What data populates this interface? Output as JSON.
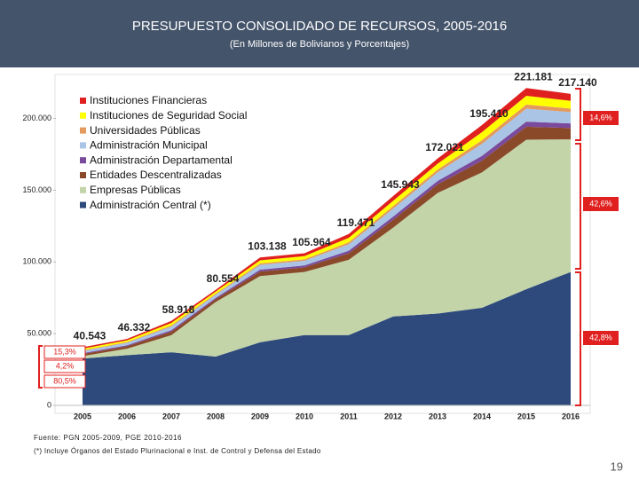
{
  "slide": {
    "page_number": "19"
  },
  "chart_data": {
    "type": "stacked_area",
    "title": "PRESUPUESTO CONSOLIDADO DE RECURSOS, 2005-2016",
    "subtitle": "(En Millones de Bolivianos y Porcentajes)",
    "categories": [
      "2005",
      "2006",
      "2007",
      "2008",
      "2009",
      "2010",
      "2011",
      "2012",
      "2013",
      "2014",
      "2015",
      "2016"
    ],
    "values": [
      40543,
      46332,
      58918,
      80554,
      103138,
      105964,
      119471,
      145943,
      172021,
      195410,
      221181,
      217140
    ],
    "value_labels": [
      "40.543",
      "46.332",
      "58.918",
      "80.554",
      "103.138",
      "105.964",
      "119.471",
      "145.943",
      "172.021",
      "195.410",
      "221.181",
      "217.140"
    ],
    "series": [
      {
        "name": "Administración Central (*)",
        "color": "#2e4a7d",
        "values": [
          32600,
          35000,
          37000,
          34000,
          44000,
          49000,
          49000,
          62000,
          64000,
          68000,
          81000,
          93000
        ]
      },
      {
        "name": "Empresas Públicas",
        "color": "#c3d4a8",
        "values": [
          1700,
          4500,
          11900,
          38000,
          46100,
          44000,
          52500,
          61900,
          84000,
          94400,
          104200,
          92400
        ]
      },
      {
        "name": "Entidades Descentralizadas",
        "color": "#8a4a2a",
        "values": [
          1500,
          1700,
          2500,
          2100,
          3200,
          3200,
          4500,
          5500,
          6000,
          8200,
          9000,
          7900
        ]
      },
      {
        "name": "Administración Departamental",
        "color": "#7a4a9c",
        "values": [
          600,
          700,
          1000,
          900,
          1300,
          1300,
          1800,
          2200,
          2400,
          3300,
          3600,
          3200
        ]
      },
      {
        "name": "Administración Municipal",
        "color": "#a9c4e4",
        "values": [
          1500,
          1700,
          2500,
          2100,
          3300,
          3300,
          4500,
          5500,
          6000,
          8300,
          9000,
          7900
        ]
      },
      {
        "name": "Universidades Públicas",
        "color": "#e39a5c",
        "values": [
          500,
          500,
          800,
          700,
          1000,
          1000,
          1400,
          1800,
          1900,
          2600,
          2900,
          2500
        ]
      },
      {
        "name": "Instituciones de Seguridad Social",
        "color": "#ffff00",
        "values": [
          1100,
          1200,
          1700,
          1500,
          2200,
          2200,
          3100,
          3700,
          4100,
          5600,
          6100,
          5400
        ]
      },
      {
        "name": "Instituciones Financieras",
        "color": "#e0201f",
        "values": [
          1000,
          1000,
          1500,
          1200,
          2000,
          2000,
          2700,
          3300,
          3600,
          5000,
          5400,
          4800
        ]
      }
    ],
    "ylim": [
      0,
      230000
    ],
    "yticks": [
      0,
      {
        "value": 50000,
        "label": "50.000"
      },
      {
        "value": 100000,
        "label": "100.000"
      },
      {
        "value": 150000,
        "label": "150.000"
      },
      {
        "value": 200000,
        "label": "200.000"
      }
    ],
    "annotations": [
      "15,3%",
      "4,2%",
      "80,5%",
      "14,6%",
      "42,6%",
      "42,8%"
    ],
    "source": "Fuente: PGN 2005-2009, PGE 2010-2016",
    "note": "(*) Incluye Órganos del Estado Plurinacional e Inst. de Control y Defensa del Estado"
  }
}
